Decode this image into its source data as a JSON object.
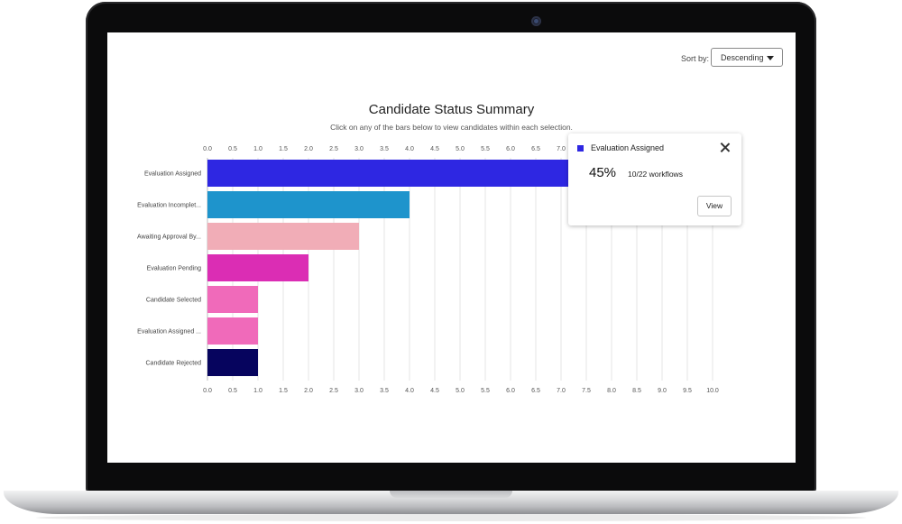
{
  "sort": {
    "label": "Sort by:",
    "value": "Descending"
  },
  "chart_data": {
    "type": "bar",
    "orientation": "horizontal",
    "title": "Candidate Status Summary",
    "subtitle": "Click on any of the bars below to view candidates within each selection.",
    "categories": [
      "Evaluation Assigned",
      "Evaluation Incomplet...",
      "Awaiting Approval By...",
      "Evaluation Pending",
      "Candidate Selected",
      "Evaluation Assigned ...",
      "Candidate Rejected"
    ],
    "values": [
      10,
      4,
      3,
      2,
      1,
      1,
      1
    ],
    "colors": [
      "#2e27e2",
      "#1e94cc",
      "#f1adb7",
      "#db2db4",
      "#f06aba",
      "#f06aba",
      "#06045e"
    ],
    "xlim": [
      0,
      10
    ],
    "ticks": [
      "0.0",
      "0.5",
      "1.0",
      "1.5",
      "2.0",
      "2.5",
      "3.0",
      "3.5",
      "4.0",
      "4.5",
      "5.0",
      "5.5",
      "6.0",
      "6.5",
      "7.0",
      "7.5",
      "8.0",
      "8.5",
      "9.0",
      "9.5",
      "10.0"
    ],
    "grid": true
  },
  "tooltip": {
    "title": "Evaluation Assigned",
    "swatch_color": "#2e27e2",
    "percent": "45%",
    "count": "10/22 workflows",
    "button": "View"
  }
}
